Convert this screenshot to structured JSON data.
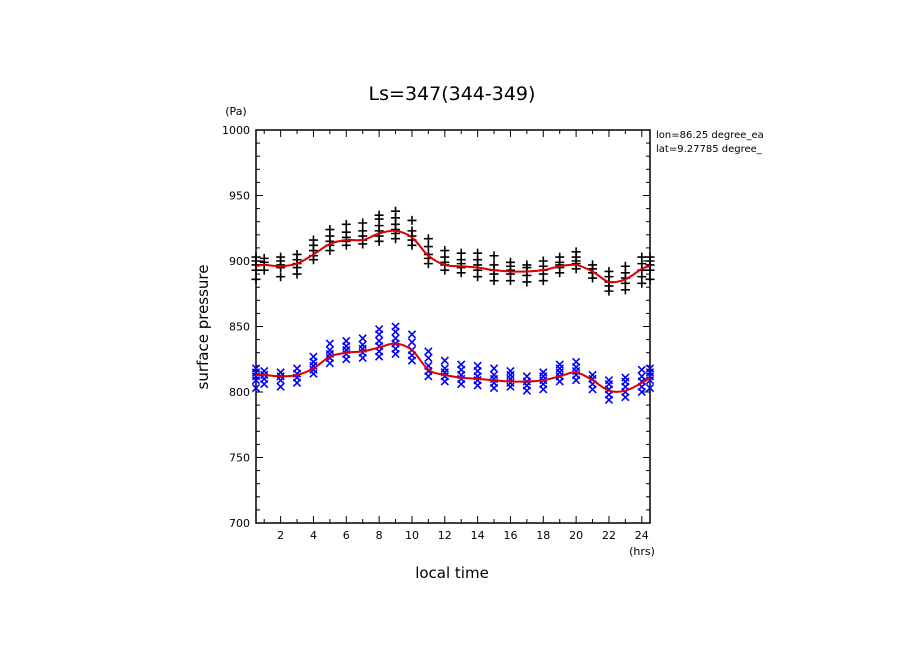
{
  "chart_data": {
    "type": "scatter",
    "title": "Ls=347(344-349)",
    "xlabel": "local time",
    "ylabel": "surface pressure",
    "x_unit": "(hrs)",
    "y_unit": "(Pa)",
    "annotations": [
      "lon=86.25 degree_ea",
      "lat=9.27785 degree_"
    ],
    "xlim": [
      0.5,
      24.5
    ],
    "ylim": [
      700,
      1000
    ],
    "x_ticks": [
      2,
      4,
      6,
      8,
      10,
      12,
      14,
      16,
      18,
      20,
      22,
      24
    ],
    "y_ticks": [
      700,
      750,
      800,
      850,
      900,
      950,
      1000
    ],
    "grid": false,
    "series": [
      {
        "marker": "+",
        "color": "#000000",
        "points": [
          [
            0.5,
            886
          ],
          [
            0.5,
            893
          ],
          [
            0.5,
            897
          ],
          [
            0.5,
            900
          ],
          [
            0.5,
            903
          ],
          [
            1,
            893
          ],
          [
            1,
            897
          ],
          [
            1,
            899
          ],
          [
            1,
            902
          ],
          [
            2,
            888
          ],
          [
            2,
            895
          ],
          [
            2,
            897
          ],
          [
            2,
            900
          ],
          [
            2,
            903
          ],
          [
            3,
            890
          ],
          [
            3,
            895
          ],
          [
            3,
            898
          ],
          [
            3,
            901
          ],
          [
            3,
            905
          ],
          [
            4,
            901
          ],
          [
            4,
            904
          ],
          [
            4,
            908
          ],
          [
            4,
            912
          ],
          [
            4,
            916
          ],
          [
            5,
            908
          ],
          [
            5,
            912
          ],
          [
            5,
            915
          ],
          [
            5,
            919
          ],
          [
            5,
            924
          ],
          [
            6,
            912
          ],
          [
            6,
            915
          ],
          [
            6,
            918
          ],
          [
            6,
            922
          ],
          [
            6,
            928
          ],
          [
            7,
            913
          ],
          [
            7,
            916
          ],
          [
            7,
            919
          ],
          [
            7,
            923
          ],
          [
            7,
            929
          ],
          [
            8,
            915
          ],
          [
            8,
            919
          ],
          [
            8,
            923
          ],
          [
            8,
            927
          ],
          [
            8,
            932
          ],
          [
            8,
            935
          ],
          [
            9,
            917
          ],
          [
            9,
            921
          ],
          [
            9,
            924
          ],
          [
            9,
            928
          ],
          [
            9,
            933
          ],
          [
            9,
            938
          ],
          [
            10,
            912
          ],
          [
            10,
            916
          ],
          [
            10,
            919
          ],
          [
            10,
            923
          ],
          [
            10,
            931
          ],
          [
            11,
            898
          ],
          [
            11,
            902
          ],
          [
            11,
            905
          ],
          [
            11,
            911
          ],
          [
            11,
            917
          ],
          [
            12,
            893
          ],
          [
            12,
            897
          ],
          [
            12,
            899
          ],
          [
            12,
            903
          ],
          [
            12,
            908
          ],
          [
            13,
            891
          ],
          [
            13,
            895
          ],
          [
            13,
            898
          ],
          [
            13,
            901
          ],
          [
            13,
            906
          ],
          [
            14,
            888
          ],
          [
            14,
            893
          ],
          [
            14,
            897
          ],
          [
            14,
            901
          ],
          [
            14,
            906
          ],
          [
            15,
            885
          ],
          [
            15,
            890
          ],
          [
            15,
            893
          ],
          [
            15,
            897
          ],
          [
            15,
            904
          ],
          [
            16,
            885
          ],
          [
            16,
            890
          ],
          [
            16,
            893
          ],
          [
            16,
            896
          ],
          [
            16,
            899
          ],
          [
            17,
            884
          ],
          [
            17,
            889
          ],
          [
            17,
            892
          ],
          [
            17,
            895
          ],
          [
            17,
            897
          ],
          [
            18,
            885
          ],
          [
            18,
            890
          ],
          [
            18,
            893
          ],
          [
            18,
            896
          ],
          [
            18,
            900
          ],
          [
            19,
            891
          ],
          [
            19,
            895
          ],
          [
            19,
            897
          ],
          [
            19,
            899
          ],
          [
            19,
            903
          ],
          [
            20,
            894
          ],
          [
            20,
            898
          ],
          [
            20,
            900
          ],
          [
            20,
            903
          ],
          [
            20,
            907
          ],
          [
            21,
            887
          ],
          [
            21,
            891
          ],
          [
            21,
            894
          ],
          [
            21,
            897
          ],
          [
            22,
            877
          ],
          [
            22,
            881
          ],
          [
            22,
            884
          ],
          [
            22,
            888
          ],
          [
            22,
            892
          ],
          [
            23,
            878
          ],
          [
            23,
            883
          ],
          [
            23,
            887
          ],
          [
            23,
            891
          ],
          [
            23,
            896
          ],
          [
            24,
            883
          ],
          [
            24,
            888
          ],
          [
            24,
            893
          ],
          [
            24,
            898
          ],
          [
            24,
            903
          ],
          [
            24.5,
            886
          ],
          [
            24.5,
            893
          ],
          [
            24.5,
            897
          ],
          [
            24.5,
            900
          ],
          [
            24.5,
            903
          ]
        ],
        "fit": [
          [
            0.5,
            896
          ],
          [
            1,
            897
          ],
          [
            2,
            896
          ],
          [
            3,
            898
          ],
          [
            4,
            905
          ],
          [
            5,
            913
          ],
          [
            6,
            916
          ],
          [
            7,
            916
          ],
          [
            8,
            921
          ],
          [
            9,
            923
          ],
          [
            10,
            918
          ],
          [
            11,
            904
          ],
          [
            12,
            897
          ],
          [
            13,
            896
          ],
          [
            14,
            895
          ],
          [
            15,
            893
          ],
          [
            16,
            892
          ],
          [
            17,
            892
          ],
          [
            18,
            893
          ],
          [
            19,
            896
          ],
          [
            20,
            897
          ],
          [
            21,
            892
          ],
          [
            22,
            884
          ],
          [
            23,
            886
          ],
          [
            24,
            894
          ],
          [
            24.5,
            896
          ]
        ]
      },
      {
        "marker": "x",
        "color": "#0000ff",
        "points": [
          [
            0.5,
            803
          ],
          [
            0.5,
            809
          ],
          [
            0.5,
            812
          ],
          [
            0.5,
            815
          ],
          [
            0.5,
            818
          ],
          [
            1,
            806
          ],
          [
            1,
            810
          ],
          [
            1,
            813
          ],
          [
            1,
            816
          ],
          [
            2,
            804
          ],
          [
            2,
            809
          ],
          [
            2,
            812
          ],
          [
            2,
            815
          ],
          [
            3,
            807
          ],
          [
            3,
            811
          ],
          [
            3,
            814
          ],
          [
            3,
            818
          ],
          [
            4,
            814
          ],
          [
            4,
            817
          ],
          [
            4,
            820
          ],
          [
            4,
            823
          ],
          [
            4,
            827
          ],
          [
            5,
            822
          ],
          [
            5,
            826
          ],
          [
            5,
            829
          ],
          [
            5,
            832
          ],
          [
            5,
            837
          ],
          [
            6,
            825
          ],
          [
            6,
            829
          ],
          [
            6,
            832
          ],
          [
            6,
            835
          ],
          [
            6,
            839
          ],
          [
            7,
            826
          ],
          [
            7,
            830
          ],
          [
            7,
            833
          ],
          [
            7,
            836
          ],
          [
            7,
            841
          ],
          [
            8,
            827
          ],
          [
            8,
            831
          ],
          [
            8,
            835
          ],
          [
            8,
            839
          ],
          [
            8,
            844
          ],
          [
            8,
            848
          ],
          [
            9,
            829
          ],
          [
            9,
            833
          ],
          [
            9,
            837
          ],
          [
            9,
            841
          ],
          [
            9,
            846
          ],
          [
            9,
            850
          ],
          [
            10,
            824
          ],
          [
            10,
            828
          ],
          [
            10,
            832
          ],
          [
            10,
            838
          ],
          [
            10,
            844
          ],
          [
            11,
            812
          ],
          [
            11,
            816
          ],
          [
            11,
            820
          ],
          [
            11,
            826
          ],
          [
            11,
            831
          ],
          [
            12,
            808
          ],
          [
            12,
            812
          ],
          [
            12,
            815
          ],
          [
            12,
            818
          ],
          [
            12,
            824
          ],
          [
            13,
            806
          ],
          [
            13,
            810
          ],
          [
            13,
            813
          ],
          [
            13,
            817
          ],
          [
            13,
            821
          ],
          [
            14,
            805
          ],
          [
            14,
            809
          ],
          [
            14,
            812
          ],
          [
            14,
            816
          ],
          [
            14,
            820
          ],
          [
            15,
            803
          ],
          [
            15,
            807
          ],
          [
            15,
            810
          ],
          [
            15,
            813
          ],
          [
            15,
            818
          ],
          [
            16,
            804
          ],
          [
            16,
            807
          ],
          [
            16,
            810
          ],
          [
            16,
            813
          ],
          [
            16,
            816
          ],
          [
            17,
            801
          ],
          [
            17,
            805
          ],
          [
            17,
            808
          ],
          [
            17,
            812
          ],
          [
            18,
            802
          ],
          [
            18,
            806
          ],
          [
            18,
            809
          ],
          [
            18,
            812
          ],
          [
            18,
            815
          ],
          [
            19,
            808
          ],
          [
            19,
            812
          ],
          [
            19,
            815
          ],
          [
            19,
            818
          ],
          [
            19,
            821
          ],
          [
            20,
            809
          ],
          [
            20,
            813
          ],
          [
            20,
            816
          ],
          [
            20,
            819
          ],
          [
            20,
            823
          ],
          [
            21,
            802
          ],
          [
            21,
            806
          ],
          [
            21,
            810
          ],
          [
            21,
            813
          ],
          [
            22,
            794
          ],
          [
            22,
            798
          ],
          [
            22,
            802
          ],
          [
            22,
            806
          ],
          [
            22,
            809
          ],
          [
            23,
            796
          ],
          [
            23,
            800
          ],
          [
            23,
            804
          ],
          [
            23,
            808
          ],
          [
            23,
            811
          ],
          [
            24,
            800
          ],
          [
            24,
            804
          ],
          [
            24,
            808
          ],
          [
            24,
            812
          ],
          [
            24,
            817
          ],
          [
            24.5,
            803
          ],
          [
            24.5,
            809
          ],
          [
            24.5,
            812
          ],
          [
            24.5,
            815
          ],
          [
            24.5,
            818
          ]
        ],
        "fit": [
          [
            0.5,
            813
          ],
          [
            1,
            813
          ],
          [
            2,
            812
          ],
          [
            3,
            813
          ],
          [
            4,
            818
          ],
          [
            5,
            827
          ],
          [
            6,
            830
          ],
          [
            7,
            831
          ],
          [
            8,
            834
          ],
          [
            9,
            837
          ],
          [
            10,
            832
          ],
          [
            11,
            817
          ],
          [
            12,
            813
          ],
          [
            13,
            811
          ],
          [
            14,
            810
          ],
          [
            15,
            809
          ],
          [
            16,
            808
          ],
          [
            17,
            808
          ],
          [
            18,
            809
          ],
          [
            19,
            812
          ],
          [
            20,
            815
          ],
          [
            21,
            809
          ],
          [
            22,
            801
          ],
          [
            23,
            801
          ],
          [
            24,
            807
          ],
          [
            24.5,
            811
          ]
        ]
      }
    ],
    "fit_color": "#dd0000"
  }
}
